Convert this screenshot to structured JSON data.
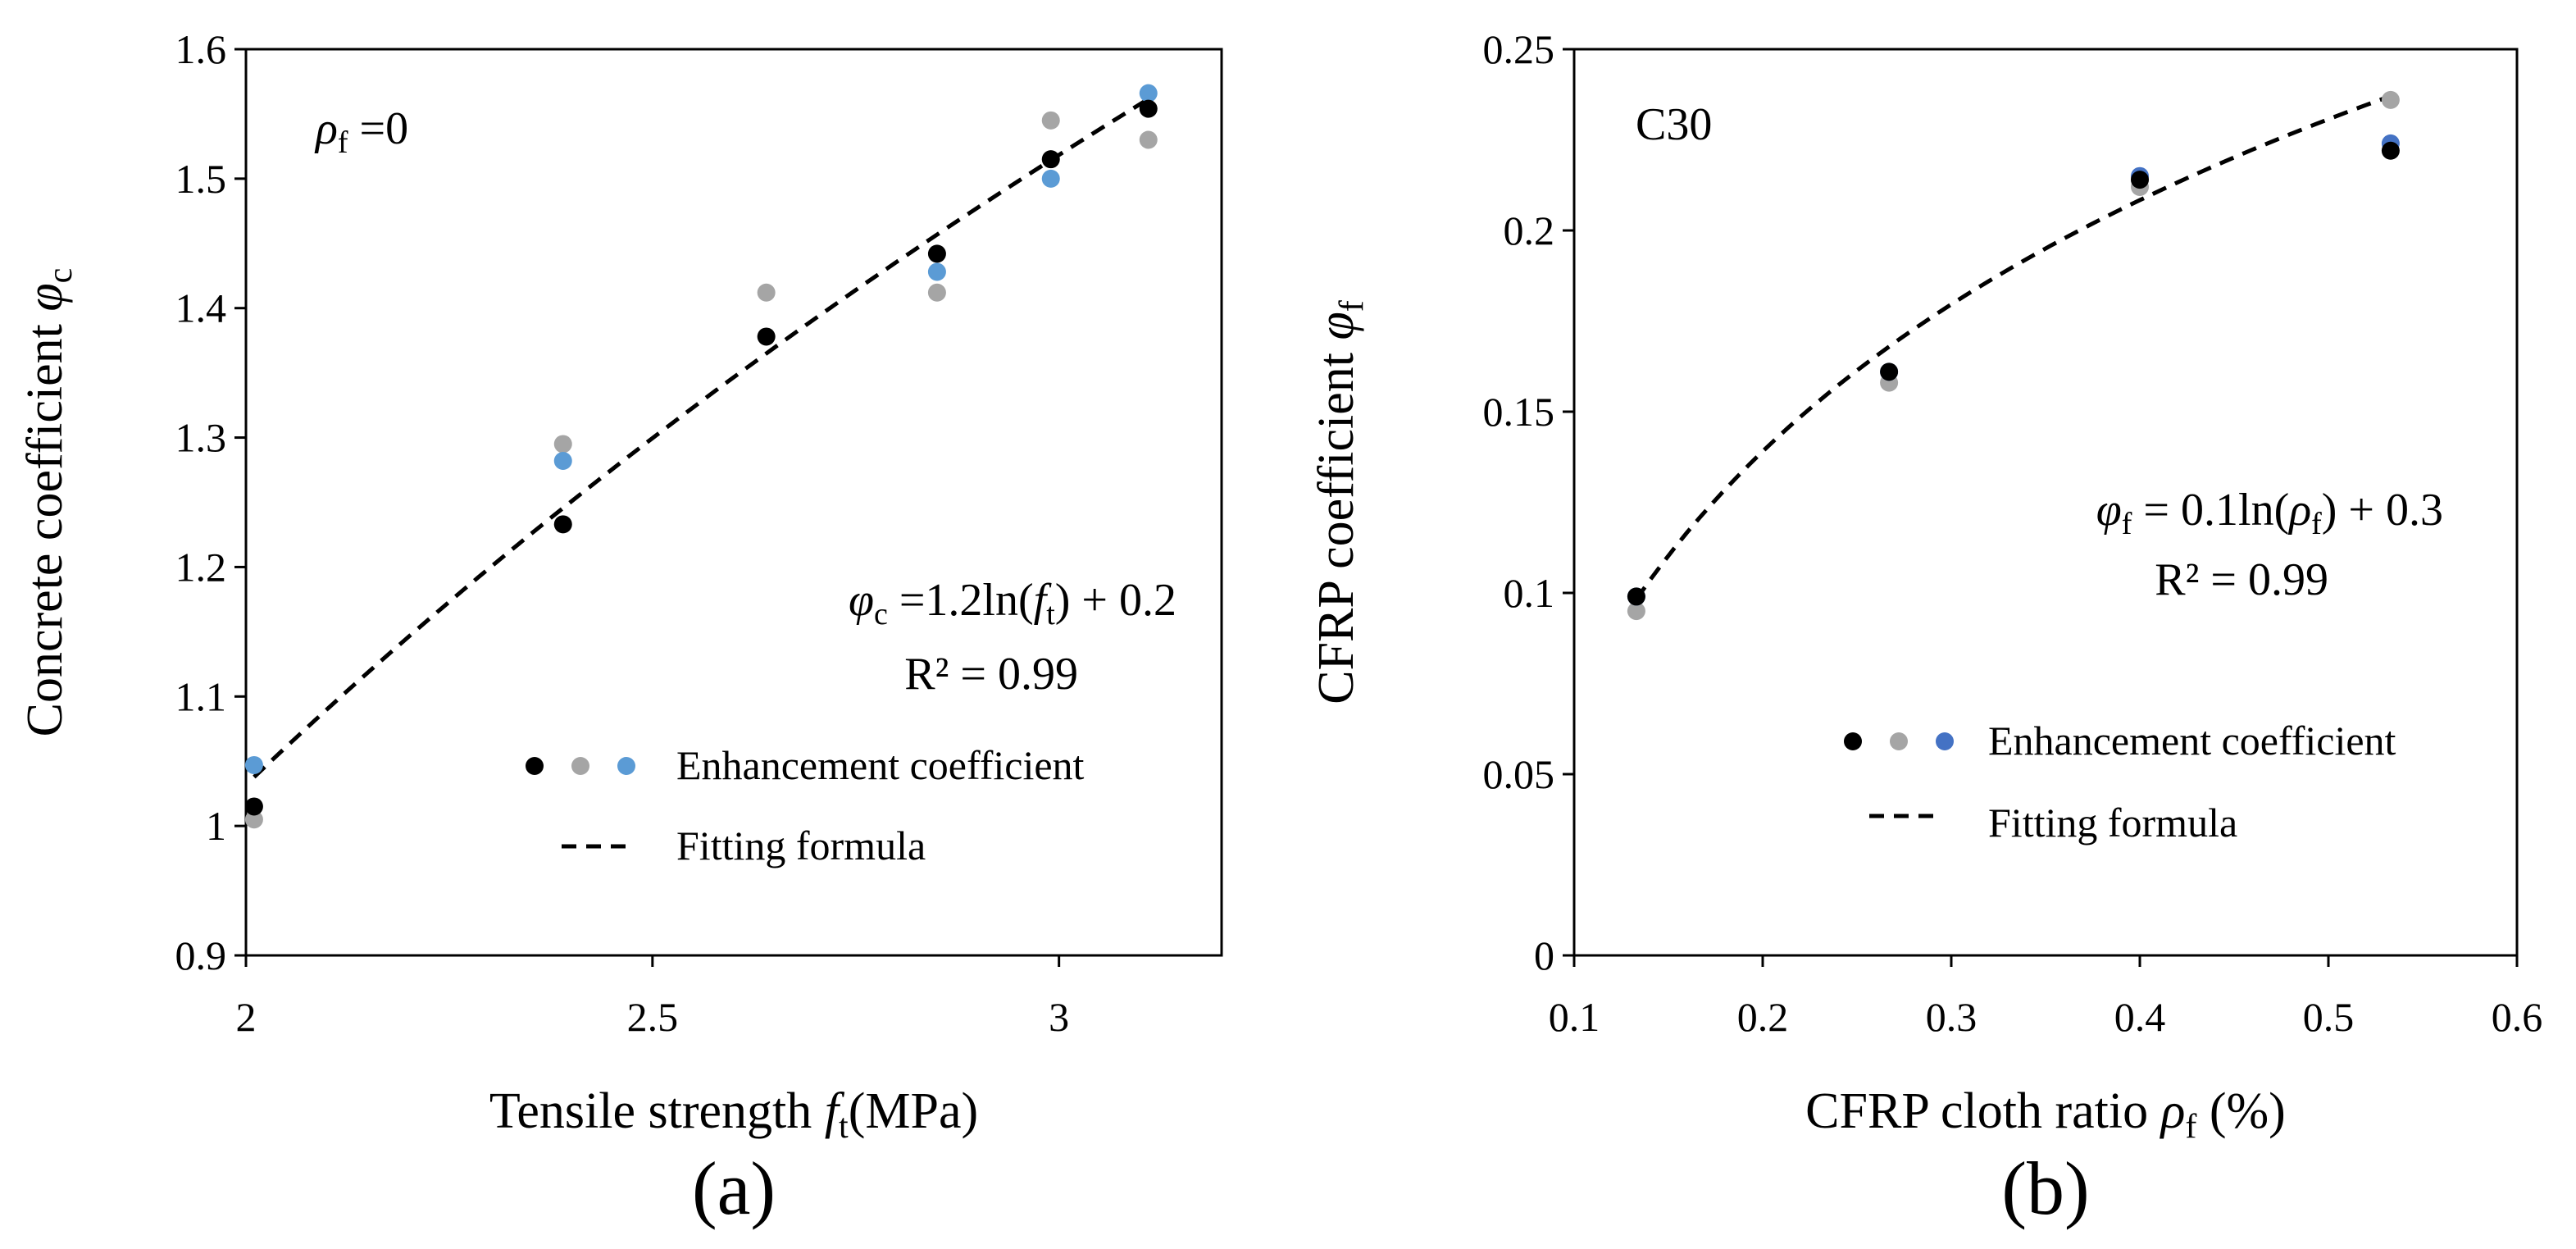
{
  "chart_data": [
    {
      "type": "scatter",
      "panel_label": "(a)",
      "xlabel_text": "Tensile strength",
      "xlabel_var": "f",
      "xlabel_sub": "t",
      "xlabel_unit": "(MPa)",
      "ylabel_text": "Concrete coefficient",
      "ylabel_var": "φ",
      "ylabel_sub": "c",
      "xlim": [
        2,
        3.2
      ],
      "ylim": [
        0.9,
        1.6
      ],
      "xticks": [
        "2",
        "2.5",
        "3"
      ],
      "xtick_values": [
        2,
        2.5,
        3
      ],
      "yticks": [
        "0.9",
        "1",
        "1.1",
        "1.2",
        "1.3",
        "1.4",
        "1.5",
        "1.6"
      ],
      "ytick_values": [
        0.9,
        1.0,
        1.1,
        1.2,
        1.3,
        1.4,
        1.5,
        1.6
      ],
      "annotation_top": {
        "var": "ρ",
        "sub": "f",
        "rest": " =0"
      },
      "equation": {
        "var": "φ",
        "sub": "c",
        "mid": " =1.2ln(",
        "fvar": "f",
        "fsub": "t",
        "end": ") + 0.2"
      },
      "r2": "R² = 0.99",
      "legend": {
        "scatter_label": "Enhancement coefficient",
        "line_label": "Fitting formula"
      },
      "series": [
        {
          "name": "black",
          "color": "#000000",
          "x": [
            2.01,
            2.39,
            2.64,
            2.85,
            2.99,
            3.11
          ],
          "y": [
            1.015,
            1.233,
            1.378,
            1.442,
            1.515,
            1.554
          ]
        },
        {
          "name": "gray",
          "color": "#a5a5a5",
          "x": [
            2.01,
            2.39,
            2.64,
            2.85,
            2.99,
            3.11
          ],
          "y": [
            1.005,
            1.295,
            1.412,
            1.412,
            1.545,
            1.53
          ]
        },
        {
          "name": "blue",
          "color": "#5b9bd5",
          "x": [
            2.01,
            2.39,
            2.85,
            2.99,
            3.11
          ],
          "y": [
            1.047,
            1.282,
            1.428,
            1.5,
            1.566
          ]
        }
      ],
      "fit": {
        "formula": "1.2*ln(x)+0.2",
        "a": 1.2,
        "b": 0.2,
        "x_range": [
          2.01,
          3.11
        ]
      }
    },
    {
      "type": "scatter",
      "panel_label": "(b)",
      "xlabel_text": "CFRP cloth ratio",
      "xlabel_var": "ρ",
      "xlabel_sub": "f",
      "xlabel_unit": "(%)",
      "ylabel_text": "CFRP coefficient",
      "ylabel_var": "φ",
      "ylabel_sub": "f",
      "xlim": [
        0.1,
        0.6
      ],
      "ylim": [
        0,
        0.25
      ],
      "xticks": [
        "0.1",
        "0.2",
        "0.3",
        "0.4",
        "0.5",
        "0.6"
      ],
      "xtick_values": [
        0.1,
        0.2,
        0.3,
        0.4,
        0.5,
        0.6
      ],
      "yticks": [
        "0",
        "0.05",
        "0.1",
        "0.15",
        "0.2",
        "0.25"
      ],
      "ytick_values": [
        0,
        0.05,
        0.1,
        0.15,
        0.2,
        0.25
      ],
      "annotation_top": {
        "text": "C30"
      },
      "equation": {
        "var": "φ",
        "sub": "f",
        "mid": " = 0.1ln(",
        "fvar": "ρ",
        "fsub": "f",
        "end": ") + 0.3"
      },
      "r2": "R² = 0.99",
      "legend": {
        "scatter_label": "Enhancement coefficient",
        "line_label": "Fitting formula"
      },
      "series": [
        {
          "name": "black",
          "color": "#000000",
          "x": [
            0.133,
            0.267,
            0.4,
            0.533
          ],
          "y": [
            0.099,
            0.161,
            0.214,
            0.222
          ]
        },
        {
          "name": "gray",
          "color": "#a5a5a5",
          "x": [
            0.133,
            0.267,
            0.4,
            0.533
          ],
          "y": [
            0.095,
            0.158,
            0.212,
            0.236
          ]
        },
        {
          "name": "blue",
          "color": "#4472c4",
          "x": [
            0.133,
            0.267,
            0.4,
            0.533
          ],
          "y": [
            0.099,
            0.161,
            0.215,
            0.224
          ]
        }
      ],
      "fit": {
        "formula": "0.1*ln(x)+0.3",
        "a": 0.1,
        "b": 0.3,
        "x_range": [
          0.133,
          0.533
        ]
      }
    }
  ]
}
